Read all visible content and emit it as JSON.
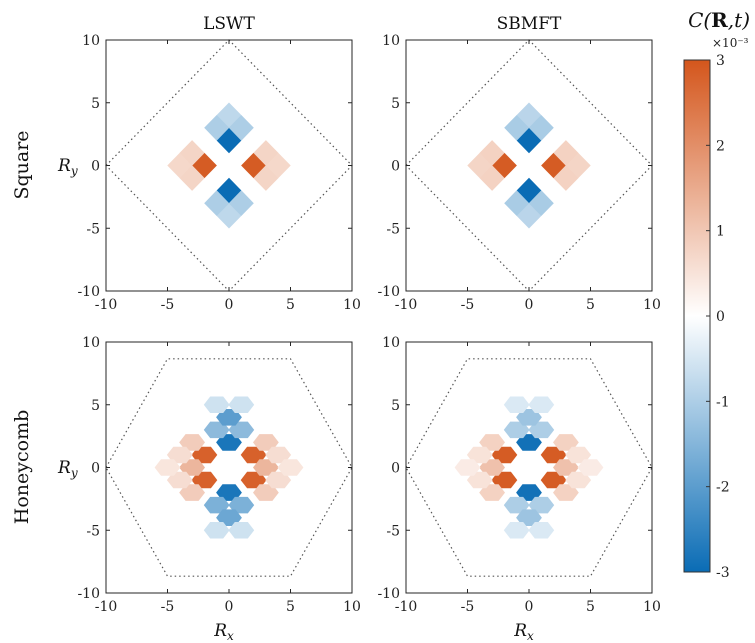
{
  "chart_data": {
    "type": "heatmap",
    "colorbar": {
      "title": "C(R,t)",
      "title_parts": {
        "fn": "C(",
        "bold": "R",
        "rest": ",t)"
      },
      "exponent_label": "×10⁻³",
      "ticks": [
        "3",
        "2",
        "1",
        "0",
        "-1",
        "-2",
        "-3"
      ],
      "tick_values": [
        3,
        2,
        1,
        0,
        -1,
        -2,
        -3
      ],
      "limits": [
        -3,
        3
      ],
      "colormap": [
        "#0a6cb5",
        "#ffffff",
        "#d4561c"
      ]
    },
    "axes": {
      "xlim": [
        -10,
        10
      ],
      "ylim": [
        -10,
        10
      ],
      "xticks": [
        "-10",
        "-5",
        "0",
        "5",
        "10"
      ],
      "yticks": [
        "10",
        "5",
        "0",
        "-5",
        "-10"
      ],
      "xlabel": "R",
      "xlabel_sub": "x",
      "ylabel": "R",
      "ylabel_sub": "y"
    },
    "columns": [
      "LSWT",
      "SBMFT"
    ],
    "rows": [
      "Square",
      "Honeycomb"
    ],
    "panels": [
      {
        "row": "Square",
        "column": "LSWT",
        "lattice": "square",
        "boundary": [
          [
            -10,
            0
          ],
          [
            0,
            10
          ],
          [
            10,
            0
          ],
          [
            0,
            -10
          ]
        ],
        "correlations": [
          {
            "x": 2,
            "y": 0,
            "c": 2.9
          },
          {
            "x": -2,
            "y": 0,
            "c": 2.9
          },
          {
            "x": 0,
            "y": 2,
            "c": -3.0
          },
          {
            "x": 0,
            "y": -2,
            "c": -3.0
          },
          {
            "x": 4,
            "y": 0,
            "c": 0.7
          },
          {
            "x": -4,
            "y": 0,
            "c": 0.7
          },
          {
            "x": 3,
            "y": 1,
            "c": 0.75
          },
          {
            "x": 3,
            "y": -1,
            "c": 0.75
          },
          {
            "x": -3,
            "y": 1,
            "c": 0.75
          },
          {
            "x": -3,
            "y": -1,
            "c": 0.75
          },
          {
            "x": 0,
            "y": 4,
            "c": -0.8
          },
          {
            "x": 0,
            "y": -4,
            "c": -0.8
          },
          {
            "x": 1,
            "y": 3,
            "c": -1.0
          },
          {
            "x": -1,
            "y": 3,
            "c": -1.0
          },
          {
            "x": 1,
            "y": -3,
            "c": -1.0
          },
          {
            "x": -1,
            "y": -3,
            "c": -1.0
          }
        ]
      },
      {
        "row": "Square",
        "column": "SBMFT",
        "lattice": "square",
        "boundary": [
          [
            -10,
            0
          ],
          [
            0,
            10
          ],
          [
            10,
            0
          ],
          [
            0,
            -10
          ]
        ],
        "correlations": [
          {
            "x": 2,
            "y": 0,
            "c": 2.9
          },
          {
            "x": -2,
            "y": 0,
            "c": 2.9
          },
          {
            "x": 0,
            "y": 2,
            "c": -3.0
          },
          {
            "x": 0,
            "y": -2,
            "c": -3.0
          },
          {
            "x": 4,
            "y": 0,
            "c": 0.75
          },
          {
            "x": -4,
            "y": 0,
            "c": 0.75
          },
          {
            "x": 3,
            "y": 1,
            "c": 0.8
          },
          {
            "x": 3,
            "y": -1,
            "c": 0.8
          },
          {
            "x": -3,
            "y": 1,
            "c": 0.8
          },
          {
            "x": -3,
            "y": -1,
            "c": 0.8
          },
          {
            "x": 0,
            "y": 4,
            "c": -0.85
          },
          {
            "x": 0,
            "y": -4,
            "c": -0.85
          },
          {
            "x": 1,
            "y": 3,
            "c": -1.05
          },
          {
            "x": -1,
            "y": 3,
            "c": -1.05
          },
          {
            "x": 1,
            "y": -3,
            "c": -1.05
          },
          {
            "x": -1,
            "y": -3,
            "c": -1.05
          }
        ]
      },
      {
        "row": "Honeycomb",
        "column": "LSWT",
        "lattice": "honeycomb",
        "boundary": [
          [
            -10,
            0
          ],
          [
            -5,
            8.66
          ],
          [
            5,
            8.66
          ],
          [
            10,
            0
          ],
          [
            5,
            -8.66
          ],
          [
            -5,
            -8.66
          ]
        ],
        "correlations": [
          {
            "x": -2,
            "y": 1,
            "c": 2.8
          },
          {
            "x": 2,
            "y": 1,
            "c": 2.8
          },
          {
            "x": -2,
            "y": -1,
            "c": 2.8
          },
          {
            "x": 2,
            "y": -1,
            "c": 2.8
          },
          {
            "x": 0,
            "y": 2,
            "c": -2.8
          },
          {
            "x": 0,
            "y": -2,
            "c": -2.8
          },
          {
            "x": -3,
            "y": 0,
            "c": 1.3
          },
          {
            "x": 3,
            "y": 0,
            "c": 1.3
          },
          {
            "x": -3,
            "y": 2,
            "c": 0.9
          },
          {
            "x": 3,
            "y": 2,
            "c": 0.9
          },
          {
            "x": -3,
            "y": -2,
            "c": 0.9
          },
          {
            "x": 3,
            "y": -2,
            "c": 0.9
          },
          {
            "x": -1,
            "y": 3,
            "c": -1.4
          },
          {
            "x": 1,
            "y": 3,
            "c": -1.4
          },
          {
            "x": -1,
            "y": -3,
            "c": -1.6
          },
          {
            "x": 1,
            "y": -3,
            "c": -1.6
          },
          {
            "x": 0,
            "y": 4,
            "c": -2.0
          },
          {
            "x": 0,
            "y": -4,
            "c": -1.8
          },
          {
            "x": -4,
            "y": 1,
            "c": 0.6
          },
          {
            "x": 4,
            "y": 1,
            "c": 0.6
          },
          {
            "x": -4,
            "y": -1,
            "c": 0.6
          },
          {
            "x": 4,
            "y": -1,
            "c": 0.6
          },
          {
            "x": -5,
            "y": 0,
            "c": 0.45
          },
          {
            "x": 5,
            "y": 0,
            "c": 0.45
          },
          {
            "x": -1,
            "y": 5,
            "c": -0.6
          },
          {
            "x": 1,
            "y": 5,
            "c": -0.6
          },
          {
            "x": -1,
            "y": -5,
            "c": -0.6
          },
          {
            "x": 1,
            "y": -5,
            "c": -0.6
          }
        ]
      },
      {
        "row": "Honeycomb",
        "column": "SBMFT",
        "lattice": "honeycomb",
        "boundary": [
          [
            -10,
            0
          ],
          [
            -5,
            8.66
          ],
          [
            5,
            8.66
          ],
          [
            10,
            0
          ],
          [
            5,
            -8.66
          ],
          [
            -5,
            -8.66
          ]
        ],
        "correlations": [
          {
            "x": -2,
            "y": 1,
            "c": 2.9
          },
          {
            "x": 2,
            "y": 1,
            "c": 2.9
          },
          {
            "x": -2,
            "y": -1,
            "c": 2.9
          },
          {
            "x": 2,
            "y": -1,
            "c": 2.9
          },
          {
            "x": 0,
            "y": 2,
            "c": -2.9
          },
          {
            "x": 0,
            "y": -2,
            "c": -2.9
          },
          {
            "x": -3,
            "y": 0,
            "c": 1.1
          },
          {
            "x": 3,
            "y": 0,
            "c": 1.1
          },
          {
            "x": -3,
            "y": 2,
            "c": 0.8
          },
          {
            "x": 3,
            "y": 2,
            "c": 0.8
          },
          {
            "x": -3,
            "y": -2,
            "c": 0.8
          },
          {
            "x": 3,
            "y": -2,
            "c": 0.8
          },
          {
            "x": -1,
            "y": 3,
            "c": -1.0
          },
          {
            "x": 1,
            "y": 3,
            "c": -1.0
          },
          {
            "x": -1,
            "y": -3,
            "c": -1.0
          },
          {
            "x": 1,
            "y": -3,
            "c": -1.0
          },
          {
            "x": 0,
            "y": 4,
            "c": -1.2
          },
          {
            "x": 0,
            "y": -4,
            "c": -1.2
          },
          {
            "x": -4,
            "y": 1,
            "c": 0.5
          },
          {
            "x": 4,
            "y": 1,
            "c": 0.5
          },
          {
            "x": -4,
            "y": -1,
            "c": 0.5
          },
          {
            "x": 4,
            "y": -1,
            "c": 0.5
          },
          {
            "x": -5,
            "y": 0,
            "c": 0.35
          },
          {
            "x": 5,
            "y": 0,
            "c": 0.35
          },
          {
            "x": -1,
            "y": 5,
            "c": -0.45
          },
          {
            "x": 1,
            "y": 5,
            "c": -0.45
          },
          {
            "x": -1,
            "y": -5,
            "c": -0.45
          },
          {
            "x": 1,
            "y": -5,
            "c": -0.45
          }
        ]
      }
    ]
  }
}
